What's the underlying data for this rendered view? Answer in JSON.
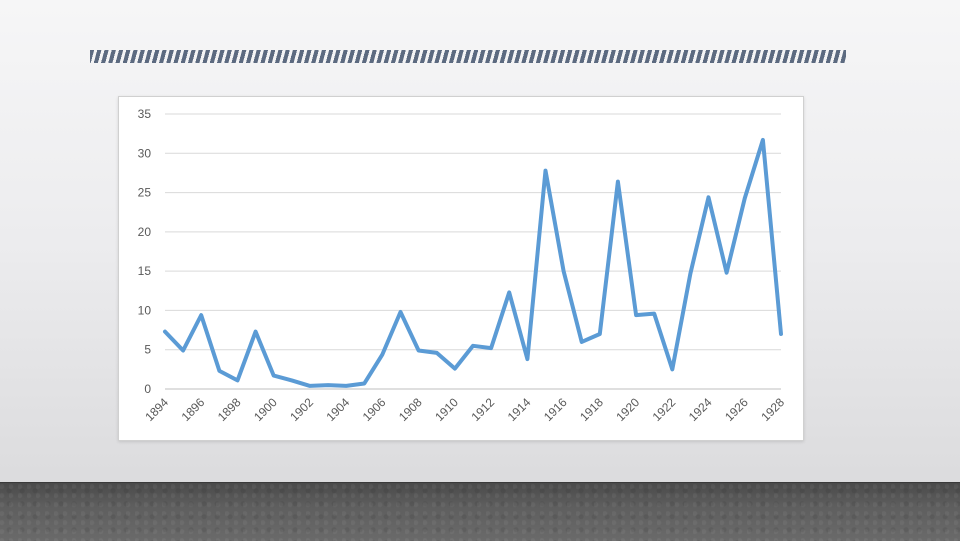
{
  "slide": {
    "stripe_color": "#5c6a80",
    "floor_color": "#5a5a5a"
  },
  "chart_data": {
    "type": "line",
    "title": "",
    "xlabel": "",
    "ylabel": "",
    "x": [
      1894,
      1895,
      1896,
      1897,
      1898,
      1899,
      1900,
      1901,
      1902,
      1903,
      1904,
      1905,
      1906,
      1907,
      1908,
      1909,
      1910,
      1911,
      1912,
      1913,
      1914,
      1915,
      1916,
      1917,
      1918,
      1919,
      1920,
      1921,
      1922,
      1923,
      1924,
      1925,
      1926,
      1927,
      1928
    ],
    "series": [
      {
        "name": "",
        "color": "#5b9bd5",
        "values": [
          7.3,
          4.9,
          9.4,
          2.3,
          1.1,
          7.3,
          1.7,
          1.1,
          0.4,
          0.5,
          0.4,
          0.7,
          4.4,
          9.8,
          4.9,
          4.6,
          2.6,
          5.5,
          5.2,
          12.3,
          3.8,
          27.8,
          15.0,
          6.0,
          7.0,
          26.4,
          9.4,
          9.6,
          2.5,
          14.7,
          24.4,
          14.8,
          24.3,
          31.7,
          7.0
        ]
      }
    ],
    "xticks": [
      "1894",
      "1896",
      "1898",
      "1900",
      "1902",
      "1904",
      "1906",
      "1908",
      "1910",
      "1912",
      "1914",
      "1916",
      "1918",
      "1920",
      "1922",
      "1924",
      "1926",
      "1928"
    ],
    "yticks": [
      "0",
      "5",
      "10",
      "15",
      "20",
      "25",
      "30",
      "35"
    ],
    "ylim": [
      0,
      35
    ],
    "grid": true,
    "legend": "none"
  }
}
